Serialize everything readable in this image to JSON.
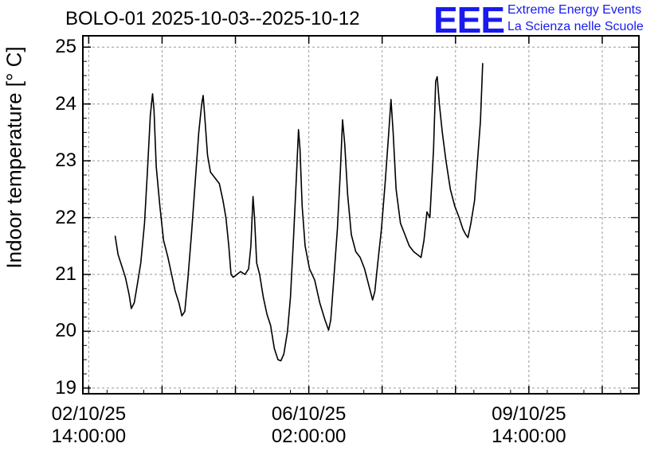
{
  "header": {
    "title": "BOLO-01 2025-10-03--2025-10-12",
    "logo_text": "EEE",
    "org_line1": "Extreme Energy Events",
    "org_line2": "La Scienza nelle Scuole"
  },
  "colors": {
    "brand": "#1a1aee",
    "line": "#000000",
    "grid": "#999999"
  },
  "chart_data": {
    "type": "line",
    "title": "BOLO-01 2025-10-03--2025-10-12",
    "xlabel": "",
    "ylabel": "Indoor temperature [° C]",
    "ylim": [
      18.9,
      25.2
    ],
    "xlim": [
      -0.08,
      7.5
    ],
    "yticks": [
      19,
      20,
      21,
      22,
      23,
      24,
      25
    ],
    "xticks": [
      {
        "pos": 0,
        "line1": "02/10/25",
        "line2": "14:00:00"
      },
      {
        "pos": 3,
        "line1": "06/10/25",
        "line2": "02:00:00"
      },
      {
        "pos": 6,
        "line1": "09/10/25",
        "line2": "14:00:00"
      }
    ],
    "grid": true,
    "series": [
      {
        "values": [
          [
            0.36,
            21.68
          ],
          [
            0.4,
            21.35
          ],
          [
            0.45,
            21.15
          ],
          [
            0.5,
            20.95
          ],
          [
            0.55,
            20.65
          ],
          [
            0.58,
            20.4
          ],
          [
            0.62,
            20.5
          ],
          [
            0.66,
            20.8
          ],
          [
            0.71,
            21.2
          ],
          [
            0.76,
            21.9
          ],
          [
            0.8,
            22.8
          ],
          [
            0.84,
            23.8
          ],
          [
            0.87,
            24.18
          ],
          [
            0.89,
            23.9
          ],
          [
            0.92,
            22.9
          ],
          [
            0.97,
            22.2
          ],
          [
            1.02,
            21.6
          ],
          [
            1.08,
            21.3
          ],
          [
            1.13,
            21.0
          ],
          [
            1.18,
            20.7
          ],
          [
            1.23,
            20.5
          ],
          [
            1.27,
            20.27
          ],
          [
            1.31,
            20.35
          ],
          [
            1.35,
            20.9
          ],
          [
            1.4,
            21.7
          ],
          [
            1.45,
            22.6
          ],
          [
            1.5,
            23.5
          ],
          [
            1.54,
            24.0
          ],
          [
            1.56,
            24.15
          ],
          [
            1.58,
            23.8
          ],
          [
            1.62,
            23.1
          ],
          [
            1.66,
            22.8
          ],
          [
            1.72,
            22.7
          ],
          [
            1.78,
            22.6
          ],
          [
            1.83,
            22.3
          ],
          [
            1.87,
            22.0
          ],
          [
            1.91,
            21.5
          ],
          [
            1.94,
            21.0
          ],
          [
            1.97,
            20.95
          ],
          [
            2.02,
            21.0
          ],
          [
            2.07,
            21.05
          ],
          [
            2.13,
            21.0
          ],
          [
            2.18,
            21.1
          ],
          [
            2.21,
            21.5
          ],
          [
            2.24,
            22.37
          ],
          [
            2.26,
            22.0
          ],
          [
            2.29,
            21.2
          ],
          [
            2.33,
            21.0
          ],
          [
            2.38,
            20.6
          ],
          [
            2.43,
            20.3
          ],
          [
            2.48,
            20.1
          ],
          [
            2.53,
            19.7
          ],
          [
            2.58,
            19.5
          ],
          [
            2.62,
            19.48
          ],
          [
            2.66,
            19.6
          ],
          [
            2.71,
            20.0
          ],
          [
            2.75,
            20.6
          ],
          [
            2.79,
            21.6
          ],
          [
            2.83,
            22.7
          ],
          [
            2.86,
            23.55
          ],
          [
            2.88,
            23.2
          ],
          [
            2.91,
            22.2
          ],
          [
            2.95,
            21.5
          ],
          [
            3.01,
            21.1
          ],
          [
            3.08,
            20.9
          ],
          [
            3.15,
            20.5
          ],
          [
            3.22,
            20.2
          ],
          [
            3.27,
            20.02
          ],
          [
            3.3,
            20.2
          ],
          [
            3.34,
            20.9
          ],
          [
            3.39,
            21.8
          ],
          [
            3.43,
            22.8
          ],
          [
            3.46,
            23.72
          ],
          [
            3.49,
            23.3
          ],
          [
            3.53,
            22.4
          ],
          [
            3.58,
            21.7
          ],
          [
            3.64,
            21.4
          ],
          [
            3.7,
            21.3
          ],
          [
            3.76,
            21.1
          ],
          [
            3.82,
            20.8
          ],
          [
            3.87,
            20.55
          ],
          [
            3.9,
            20.7
          ],
          [
            3.94,
            21.2
          ],
          [
            3.99,
            21.8
          ],
          [
            4.04,
            22.6
          ],
          [
            4.09,
            23.5
          ],
          [
            4.12,
            24.08
          ],
          [
            4.15,
            23.5
          ],
          [
            4.19,
            22.5
          ],
          [
            4.25,
            21.9
          ],
          [
            4.31,
            21.7
          ],
          [
            4.37,
            21.5
          ],
          [
            4.43,
            21.4
          ],
          [
            4.48,
            21.35
          ],
          [
            4.53,
            21.3
          ],
          [
            4.57,
            21.6
          ],
          [
            4.61,
            22.1
          ],
          [
            4.65,
            22.0
          ],
          [
            4.7,
            23.2
          ],
          [
            4.73,
            24.4
          ],
          [
            4.75,
            24.48
          ],
          [
            4.78,
            24.0
          ],
          [
            4.82,
            23.5
          ],
          [
            4.87,
            23.0
          ],
          [
            4.93,
            22.5
          ],
          [
            4.99,
            22.2
          ],
          [
            5.05,
            22.0
          ],
          [
            5.1,
            21.8
          ],
          [
            5.14,
            21.7
          ],
          [
            5.17,
            21.65
          ],
          [
            5.21,
            21.9
          ],
          [
            5.26,
            22.3
          ],
          [
            5.3,
            23.0
          ],
          [
            5.34,
            23.7
          ],
          [
            5.37,
            24.72
          ]
        ]
      }
    ]
  }
}
